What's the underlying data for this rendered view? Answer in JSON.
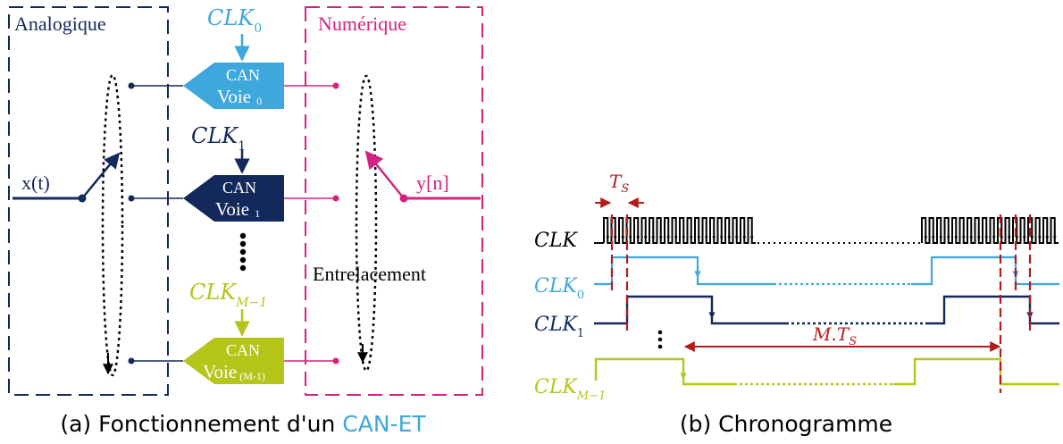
{
  "colors": {
    "navy": "#13285b",
    "cyan": "#3ea7db",
    "magenta": "#d4237e",
    "lime": "#b5c51a",
    "red": "#b51b1b",
    "black": "#000000"
  },
  "diagram_a": {
    "analog_label": "Analogique",
    "digital_label": "Numérique",
    "input_label": "x(t)",
    "output_label": "y[n]",
    "interleave_label": "Entrelacement",
    "clocks": [
      {
        "base": "CLK",
        "sub": "0"
      },
      {
        "base": "CLK",
        "sub": "1"
      },
      {
        "base": "CLK",
        "sub": "M−1"
      }
    ],
    "adcs": [
      {
        "line1": "CAN",
        "line2": "Voie",
        "sub": "0"
      },
      {
        "line1": "CAN",
        "line2": "Voie",
        "sub": "1"
      },
      {
        "line1": "CAN",
        "line2": "Voie",
        "sub": "(M-1)"
      }
    ],
    "caption_prefix": "(a) Fonctionnement d'un ",
    "caption_highlight": "CAN-ET"
  },
  "diagram_b": {
    "signals": [
      {
        "base": "CLK",
        "sub": ""
      },
      {
        "base": "CLK",
        "sub": "0"
      },
      {
        "base": "CLK",
        "sub": "1"
      },
      {
        "base": "CLK",
        "sub": "M−1"
      }
    ],
    "ts_label": {
      "base": "T",
      "sub": "S"
    },
    "mts_label": {
      "base": "M.T",
      "sub": "S"
    },
    "caption": "(b) Chronogramme"
  }
}
